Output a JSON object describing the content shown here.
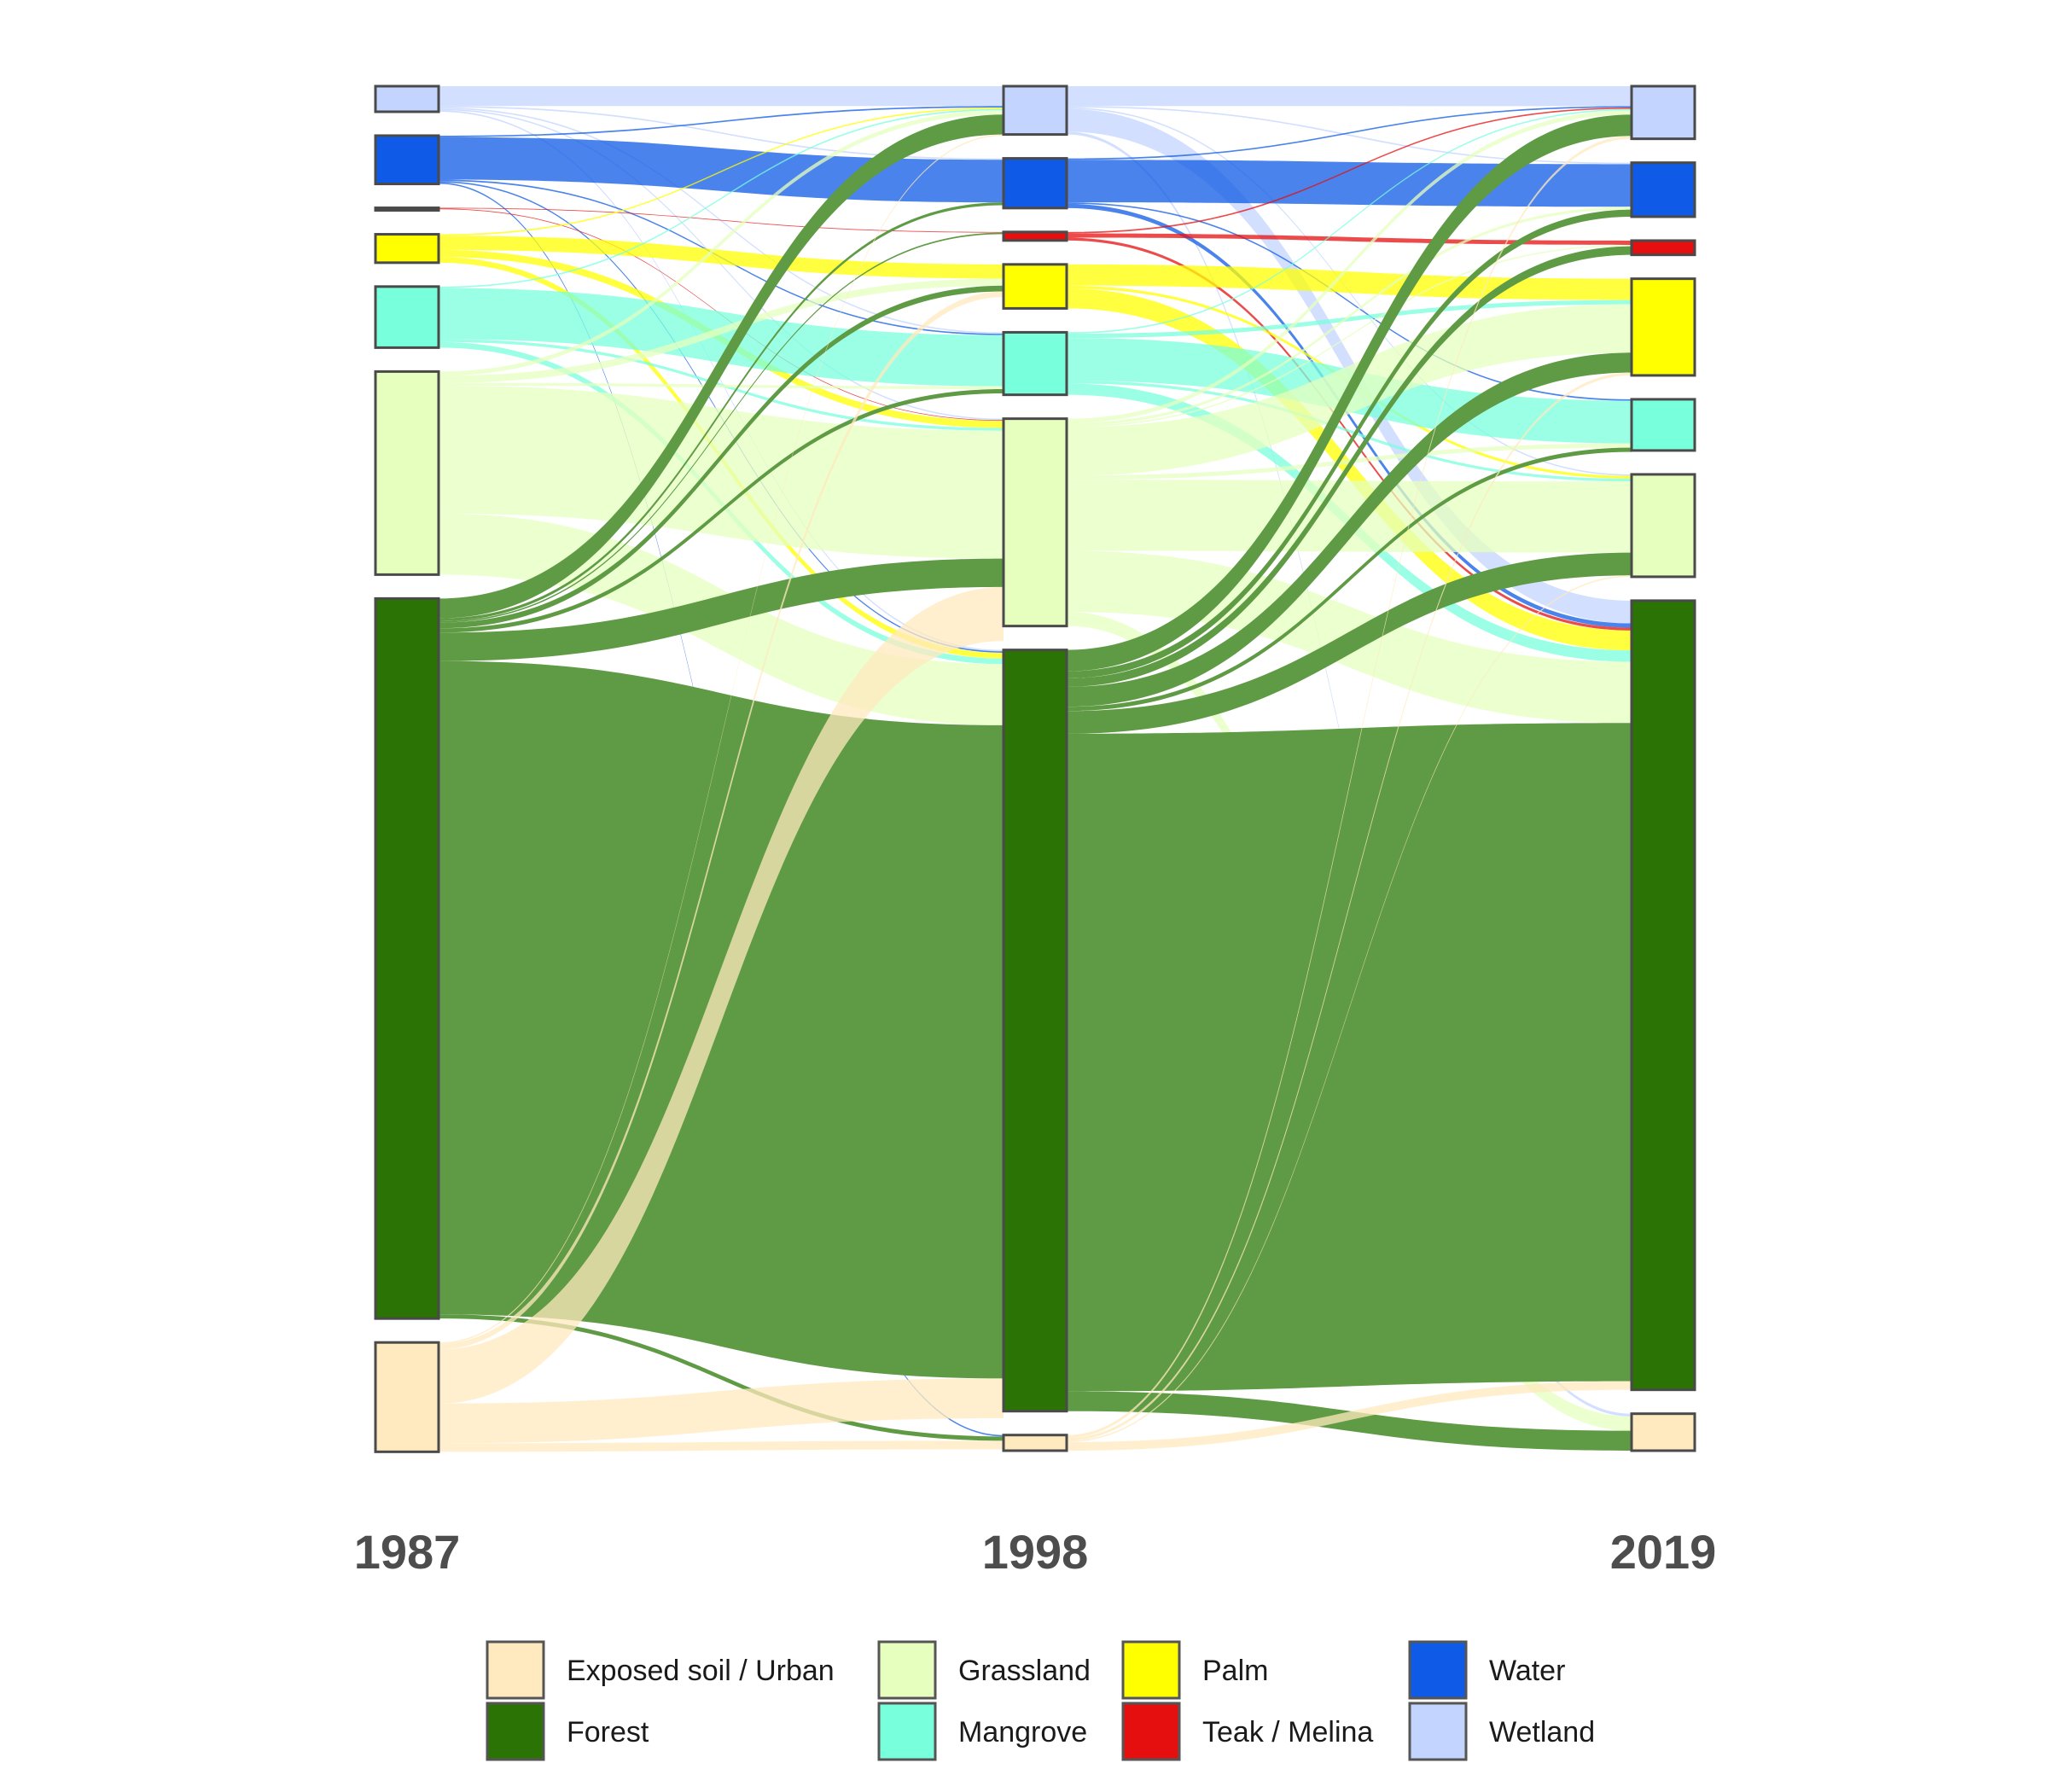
{
  "chart_data": {
    "type": "sankey",
    "title": "",
    "years": [
      "1987",
      "1998",
      "2019"
    ],
    "categories": [
      {
        "key": "wetland",
        "name": "Wetland",
        "color": "#C3D4FF"
      },
      {
        "key": "water",
        "name": "Water",
        "color": "#0F5AE6"
      },
      {
        "key": "teak",
        "name": "Teak / Melina",
        "color": "#E60F0F"
      },
      {
        "key": "palm",
        "name": "Palm",
        "color": "#FFFF00"
      },
      {
        "key": "mangrove",
        "name": "Mangrove",
        "color": "#78FFDC"
      },
      {
        "key": "grassland",
        "name": "Grassland",
        "color": "#E6FFBE"
      },
      {
        "key": "forest",
        "name": "Forest",
        "color": "#2A7304"
      },
      {
        "key": "soil",
        "name": "Exposed soil / Urban",
        "color": "#FFE9BE"
      }
    ],
    "node_values": {
      "1987": {
        "wetland": 18,
        "water": 34,
        "teak": 1,
        "palm": 20,
        "mangrove": 43,
        "grassland": 143,
        "forest": 507,
        "soil": 77
      },
      "1998": {
        "wetland": 34,
        "water": 35,
        "teak": 6,
        "palm": 31,
        "mangrove": 44,
        "grassland": 146,
        "forest": 536,
        "soil": 11
      },
      "2019": {
        "wetland": 37,
        "water": 38,
        "teak": 10,
        "palm": 68,
        "mangrove": 36,
        "grassland": 72,
        "forest": 555,
        "soil": 26
      }
    },
    "flows": [
      {
        "period": 0,
        "from": "wetland",
        "to": "wetland",
        "value": 14
      },
      {
        "period": 0,
        "from": "wetland",
        "to": "water",
        "value": 1
      },
      {
        "period": 0,
        "from": "wetland",
        "to": "mangrove",
        "value": 1
      },
      {
        "period": 0,
        "from": "wetland",
        "to": "grassland",
        "value": 1
      },
      {
        "period": 0,
        "from": "wetland",
        "to": "forest",
        "value": 1
      },
      {
        "period": 0,
        "from": "water",
        "to": "wetland",
        "value": 1
      },
      {
        "period": 0,
        "from": "water",
        "to": "water",
        "value": 30
      },
      {
        "period": 0,
        "from": "water",
        "to": "mangrove",
        "value": 1
      },
      {
        "period": 0,
        "from": "water",
        "to": "forest",
        "value": 1
      },
      {
        "period": 0,
        "from": "water",
        "to": "soil",
        "value": 1
      },
      {
        "period": 0,
        "from": "teak",
        "to": "teak",
        "value": 0.5
      },
      {
        "period": 0,
        "from": "teak",
        "to": "grassland",
        "value": 0.5
      },
      {
        "period": 0,
        "from": "palm",
        "to": "wetland",
        "value": 1
      },
      {
        "period": 0,
        "from": "palm",
        "to": "palm",
        "value": 10
      },
      {
        "period": 0,
        "from": "palm",
        "to": "grassland",
        "value": 5
      },
      {
        "period": 0,
        "from": "palm",
        "to": "forest",
        "value": 4
      },
      {
        "period": 0,
        "from": "mangrove",
        "to": "wetland",
        "value": 1
      },
      {
        "period": 0,
        "from": "mangrove",
        "to": "mangrove",
        "value": 36
      },
      {
        "period": 0,
        "from": "mangrove",
        "to": "grassland",
        "value": 2
      },
      {
        "period": 0,
        "from": "mangrove",
        "to": "forest",
        "value": 4
      },
      {
        "period": 0,
        "from": "grassland",
        "to": "wetland",
        "value": 3
      },
      {
        "period": 0,
        "from": "grassland",
        "to": "palm",
        "value": 5
      },
      {
        "period": 0,
        "from": "grassland",
        "to": "mangrove",
        "value": 2
      },
      {
        "period": 0,
        "from": "grassland",
        "to": "grassland",
        "value": 90
      },
      {
        "period": 0,
        "from": "grassland",
        "to": "forest",
        "value": 43
      },
      {
        "period": 0,
        "from": "forest",
        "to": "wetland",
        "value": 14
      },
      {
        "period": 0,
        "from": "forest",
        "to": "water",
        "value": 2
      },
      {
        "period": 0,
        "from": "forest",
        "to": "teak",
        "value": 1
      },
      {
        "period": 0,
        "from": "forest",
        "to": "palm",
        "value": 4
      },
      {
        "period": 0,
        "from": "forest",
        "to": "mangrove",
        "value": 3
      },
      {
        "period": 0,
        "from": "forest",
        "to": "grassland",
        "value": 20
      },
      {
        "period": 0,
        "from": "forest",
        "to": "forest",
        "value": 460
      },
      {
        "period": 0,
        "from": "forest",
        "to": "soil",
        "value": 3
      },
      {
        "period": 0,
        "from": "soil",
        "to": "wetland",
        "value": 1
      },
      {
        "period": 0,
        "from": "soil",
        "to": "palm",
        "value": 4
      },
      {
        "period": 0,
        "from": "soil",
        "to": "grassland",
        "value": 38
      },
      {
        "period": 0,
        "from": "soil",
        "to": "forest",
        "value": 28
      },
      {
        "period": 0,
        "from": "soil",
        "to": "soil",
        "value": 6
      },
      {
        "period": 1,
        "from": "wetland",
        "to": "wetland",
        "value": 14
      },
      {
        "period": 1,
        "from": "wetland",
        "to": "water",
        "value": 1
      },
      {
        "period": 1,
        "from": "wetland",
        "to": "grassland",
        "value": 1
      },
      {
        "period": 1,
        "from": "wetland",
        "to": "forest",
        "value": 16
      },
      {
        "period": 1,
        "from": "wetland",
        "to": "soil",
        "value": 2
      },
      {
        "period": 1,
        "from": "water",
        "to": "wetland",
        "value": 1
      },
      {
        "period": 1,
        "from": "water",
        "to": "water",
        "value": 30
      },
      {
        "period": 1,
        "from": "water",
        "to": "mangrove",
        "value": 1
      },
      {
        "period": 1,
        "from": "water",
        "to": "forest",
        "value": 3
      },
      {
        "period": 1,
        "from": "teak",
        "to": "wetland",
        "value": 1
      },
      {
        "period": 1,
        "from": "teak",
        "to": "teak",
        "value": 3
      },
      {
        "period": 1,
        "from": "teak",
        "to": "forest",
        "value": 2
      },
      {
        "period": 1,
        "from": "palm",
        "to": "palm",
        "value": 15
      },
      {
        "period": 1,
        "from": "palm",
        "to": "grassland",
        "value": 2
      },
      {
        "period": 1,
        "from": "palm",
        "to": "forest",
        "value": 14
      },
      {
        "period": 1,
        "from": "mangrove",
        "to": "wetland",
        "value": 1
      },
      {
        "period": 1,
        "from": "mangrove",
        "to": "palm",
        "value": 3
      },
      {
        "period": 1,
        "from": "mangrove",
        "to": "mangrove",
        "value": 30
      },
      {
        "period": 1,
        "from": "mangrove",
        "to": "grassland",
        "value": 2
      },
      {
        "period": 1,
        "from": "mangrove",
        "to": "forest",
        "value": 8
      },
      {
        "period": 1,
        "from": "grassland",
        "to": "wetland",
        "value": 3
      },
      {
        "period": 1,
        "from": "grassland",
        "to": "water",
        "value": 2
      },
      {
        "period": 1,
        "from": "grassland",
        "to": "teak",
        "value": 1
      },
      {
        "period": 1,
        "from": "grassland",
        "to": "palm",
        "value": 34
      },
      {
        "period": 1,
        "from": "grassland",
        "to": "mangrove",
        "value": 3
      },
      {
        "period": 1,
        "from": "grassland",
        "to": "grassland",
        "value": 50
      },
      {
        "period": 1,
        "from": "grassland",
        "to": "forest",
        "value": 43
      },
      {
        "period": 1,
        "from": "grassland",
        "to": "soil",
        "value": 10
      },
      {
        "period": 1,
        "from": "forest",
        "to": "wetland",
        "value": 15
      },
      {
        "period": 1,
        "from": "forest",
        "to": "water",
        "value": 5
      },
      {
        "period": 1,
        "from": "forest",
        "to": "teak",
        "value": 6
      },
      {
        "period": 1,
        "from": "forest",
        "to": "palm",
        "value": 14
      },
      {
        "period": 1,
        "from": "forest",
        "to": "mangrove",
        "value": 3
      },
      {
        "period": 1,
        "from": "forest",
        "to": "grassland",
        "value": 16
      },
      {
        "period": 1,
        "from": "forest",
        "to": "forest",
        "value": 463
      },
      {
        "period": 1,
        "from": "forest",
        "to": "soil",
        "value": 14
      },
      {
        "period": 1,
        "from": "soil",
        "to": "wetland",
        "value": 2
      },
      {
        "period": 1,
        "from": "soil",
        "to": "palm",
        "value": 2
      },
      {
        "period": 1,
        "from": "soil",
        "to": "grassland",
        "value": 1
      },
      {
        "period": 1,
        "from": "soil",
        "to": "forest",
        "value": 6
      }
    ]
  },
  "legend": {
    "items": [
      {
        "key": "soil",
        "label": "Exposed soil / Urban"
      },
      {
        "key": "forest",
        "label": "Forest"
      },
      {
        "key": "grassland",
        "label": "Grassland"
      },
      {
        "key": "mangrove",
        "label": "Mangrove"
      },
      {
        "key": "palm",
        "label": "Palm"
      },
      {
        "key": "teak",
        "label": "Teak / Melina"
      },
      {
        "key": "water",
        "label": "Water"
      },
      {
        "key": "wetland",
        "label": "Wetland"
      }
    ]
  }
}
